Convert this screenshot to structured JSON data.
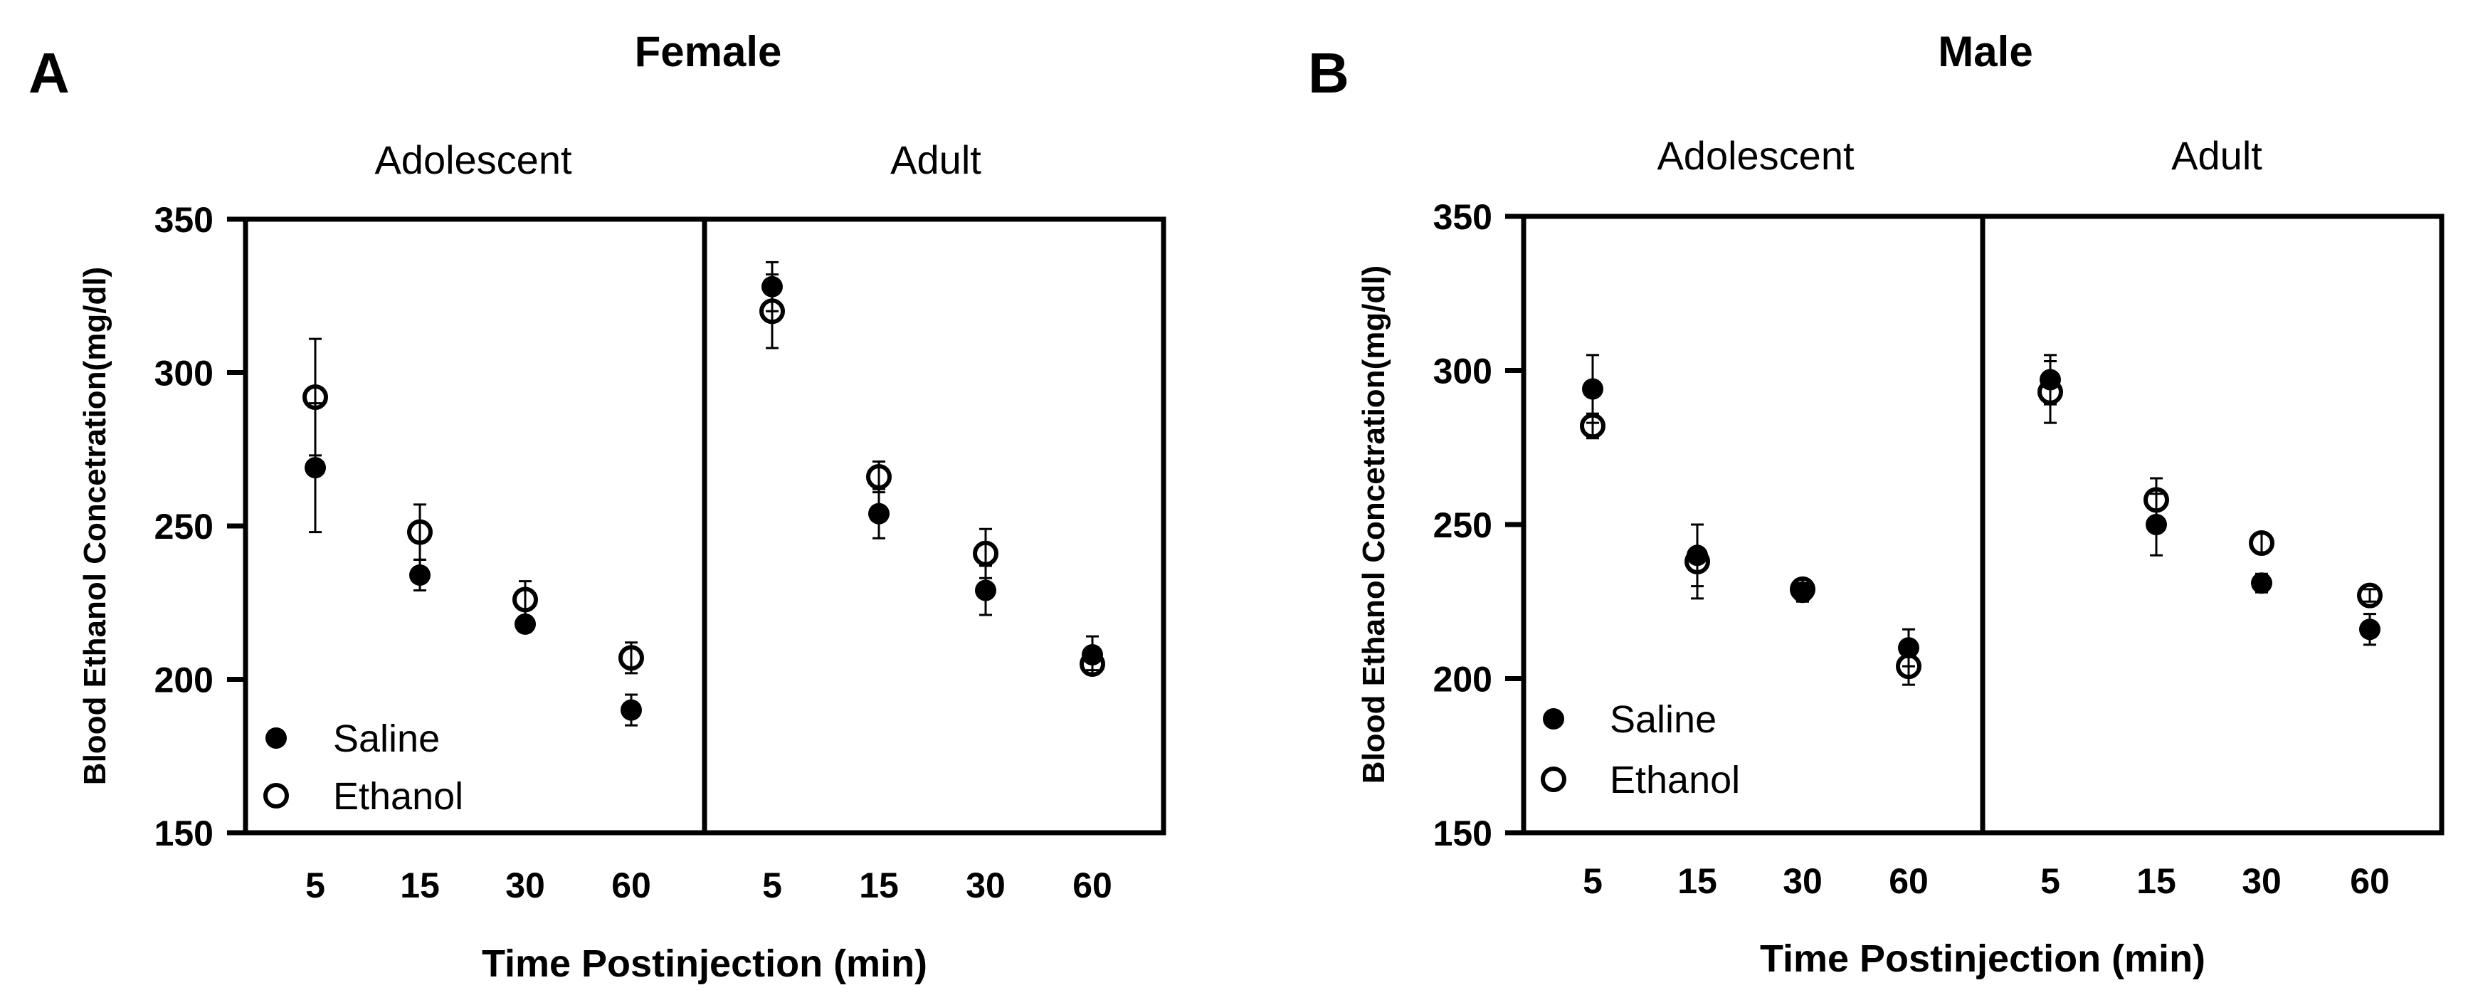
{
  "chart_data": [
    {
      "type": "scatter",
      "panel_letter": "A",
      "title": "Female",
      "groups": [
        "Adolescent",
        "Adult"
      ],
      "xlabel": "Time Postinjection (min)",
      "ylabel": "Blood Ethanol Concetration(mg/dl)",
      "ylim": [
        150,
        350
      ],
      "yticks": [
        "150",
        "200",
        "250",
        "300",
        "350"
      ],
      "categories": [
        "5",
        "15",
        "30",
        "60"
      ],
      "series": [
        {
          "name": "Saline",
          "marker": "filled",
          "groups": [
            {
              "values": [
                269,
                234,
                218,
                190
              ],
              "errors": [
                21,
                5,
                0,
                5
              ]
            },
            {
              "values": [
                328,
                254,
                229,
                208
              ],
              "errors": [
                8,
                8,
                8,
                6
              ]
            }
          ]
        },
        {
          "name": "Ethanol",
          "marker": "open",
          "groups": [
            {
              "values": [
                292,
                248,
                226,
                207
              ],
              "errors": [
                19,
                9,
                6,
                5
              ]
            },
            {
              "values": [
                320,
                266,
                241,
                205
              ],
              "errors": [
                12,
                5,
                8,
                2
              ]
            }
          ]
        }
      ],
      "legend": [
        "Saline",
        "Ethanol"
      ],
      "legend_position": "bottom-left"
    },
    {
      "type": "scatter",
      "panel_letter": "B",
      "title": "Male",
      "groups": [
        "Adolescent",
        "Adult"
      ],
      "xlabel": "Time Postinjection (min)",
      "ylabel": "Blood Ethanol Concetration(mg/dl)",
      "ylim": [
        150,
        350
      ],
      "yticks": [
        "150",
        "200",
        "250",
        "300",
        "350"
      ],
      "categories": [
        "5",
        "15",
        "30",
        "60"
      ],
      "series": [
        {
          "name": "Saline",
          "marker": "filled",
          "groups": [
            {
              "values": [
                294,
                240,
                228,
                210
              ],
              "errors": [
                11,
                10,
                3,
                6
              ]
            },
            {
              "values": [
                297,
                250,
                231,
                216
              ],
              "errors": [
                8,
                10,
                3,
                5
              ]
            }
          ]
        },
        {
          "name": "Ethanol",
          "marker": "open",
          "groups": [
            {
              "values": [
                282,
                238,
                229,
                204
              ],
              "errors": [
                4,
                12,
                3,
                6
              ]
            },
            {
              "values": [
                293,
                258,
                244,
                227
              ],
              "errors": [
                10,
                7,
                3,
                2
              ]
            }
          ]
        }
      ],
      "legend": [
        "Saline",
        "Ethanol"
      ],
      "legend_position": "bottom-left"
    }
  ]
}
